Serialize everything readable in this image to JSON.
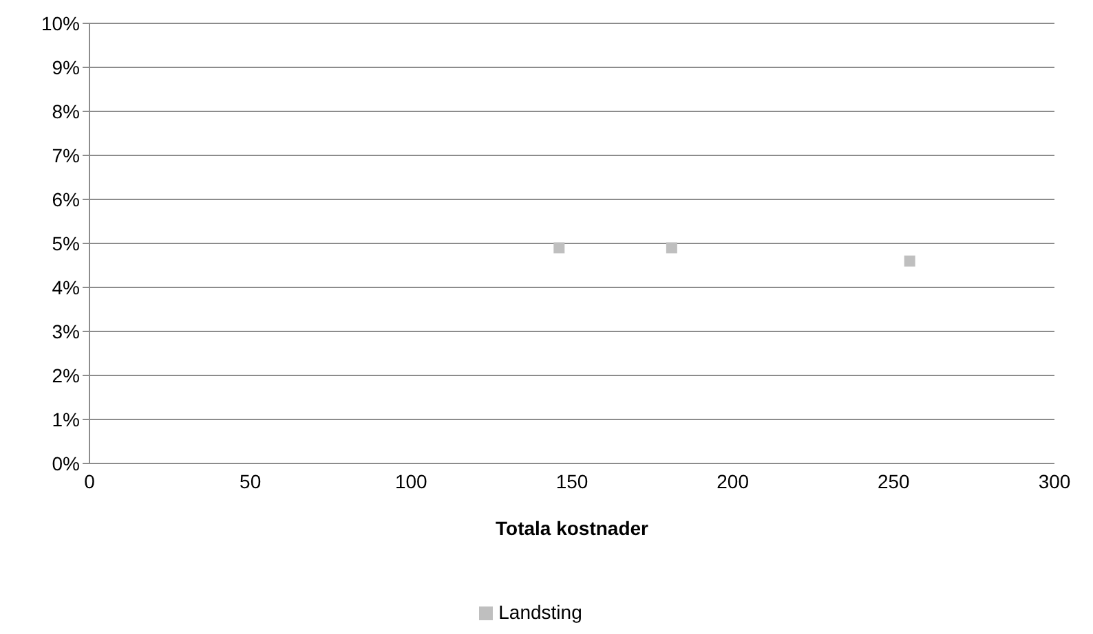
{
  "chart_data": {
    "type": "scatter",
    "xlabel": "Totala kostnader",
    "series": [
      {
        "name": "Landsting",
        "color": "#bfbfbf",
        "x": [
          146,
          181,
          255
        ],
        "values": [
          4.9,
          4.9,
          4.6
        ]
      }
    ],
    "xlim": [
      0,
      300
    ],
    "xticks": [
      0,
      50,
      100,
      150,
      200,
      250,
      300
    ],
    "ylim": [
      0,
      10
    ],
    "yticks": [
      {
        "value": 0,
        "label": "0%"
      },
      {
        "value": 1,
        "label": "1%"
      },
      {
        "value": 2,
        "label": "2%"
      },
      {
        "value": 3,
        "label": "3%"
      },
      {
        "value": 4,
        "label": "4%"
      },
      {
        "value": 5,
        "label": "5%"
      },
      {
        "value": 6,
        "label": "6%"
      },
      {
        "value": 7,
        "label": "7%"
      },
      {
        "value": 8,
        "label": "8%"
      },
      {
        "value": 9,
        "label": "9%"
      },
      {
        "value": 10,
        "label": "10%"
      }
    ],
    "grid": "y",
    "legend": "bottom",
    "marker": "square"
  }
}
